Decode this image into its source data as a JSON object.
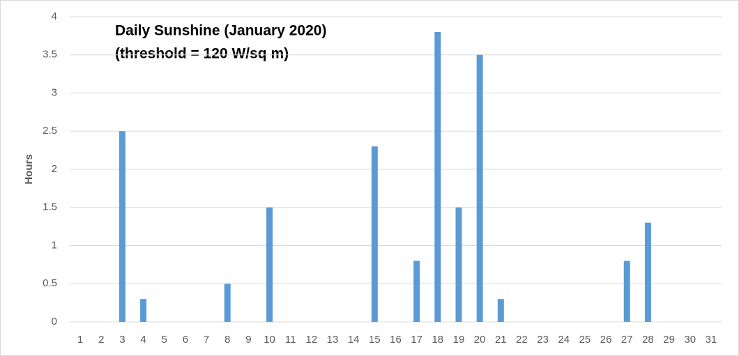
{
  "chart_data": {
    "type": "bar",
    "title": "Daily Sunshine (January 2020)",
    "subtitle": "(threshold = 120 W/sq m)",
    "y_label": "Hours",
    "categories": [
      "1",
      "2",
      "3",
      "4",
      "5",
      "6",
      "7",
      "8",
      "9",
      "10",
      "11",
      "12",
      "13",
      "14",
      "15",
      "16",
      "17",
      "18",
      "19",
      "20",
      "21",
      "22",
      "23",
      "24",
      "25",
      "26",
      "27",
      "28",
      "29",
      "30",
      "31"
    ],
    "values": [
      0,
      0,
      2.5,
      0.3,
      0,
      0,
      0,
      0.5,
      0,
      1.5,
      0,
      0,
      0,
      0,
      2.3,
      0,
      0.8,
      3.8,
      1.5,
      3.5,
      0.3,
      0,
      0,
      0,
      0,
      0,
      0.8,
      1.3,
      0,
      0,
      0
    ],
    "color": "#5b9bd5",
    "ylim": [
      0,
      4
    ],
    "yticks": [
      0,
      0.5,
      1,
      1.5,
      2,
      2.5,
      3,
      3.5,
      4
    ],
    "grid": true
  }
}
